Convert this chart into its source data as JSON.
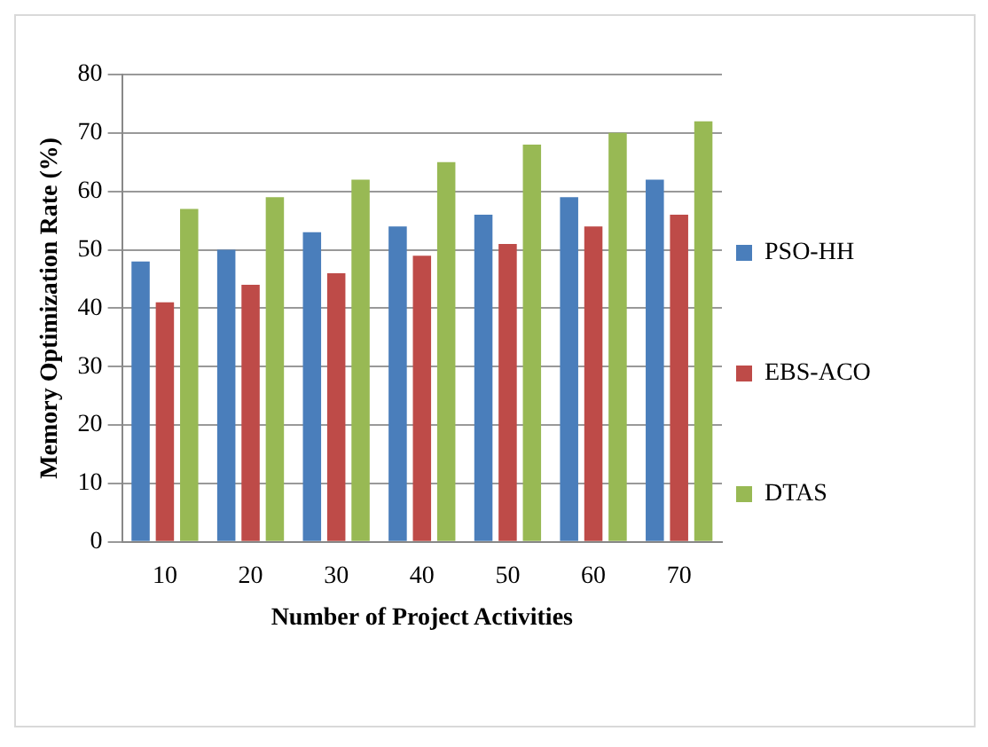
{
  "chart_data": {
    "type": "bar",
    "xlabel": "Number of Project Activities",
    "ylabel": "Memory Optimization Rate (%)",
    "categories": [
      "10",
      "20",
      "30",
      "40",
      "50",
      "60",
      "70"
    ],
    "series": [
      {
        "name": "PSO-HH",
        "color": "#4a7ebb",
        "values": [
          48,
          50,
          53,
          54,
          56,
          59,
          62
        ]
      },
      {
        "name": "EBS-ACO",
        "color": "#be4b48",
        "values": [
          41,
          44,
          46,
          49,
          51,
          54,
          56
        ]
      },
      {
        "name": "DTAS",
        "color": "#98b954",
        "values": [
          57,
          59,
          62,
          65,
          68,
          70,
          72
        ]
      }
    ],
    "ylim": [
      0,
      80
    ],
    "yticks": [
      0,
      10,
      20,
      30,
      40,
      50,
      60,
      70,
      80
    ],
    "grid": "y",
    "legend": "right"
  }
}
